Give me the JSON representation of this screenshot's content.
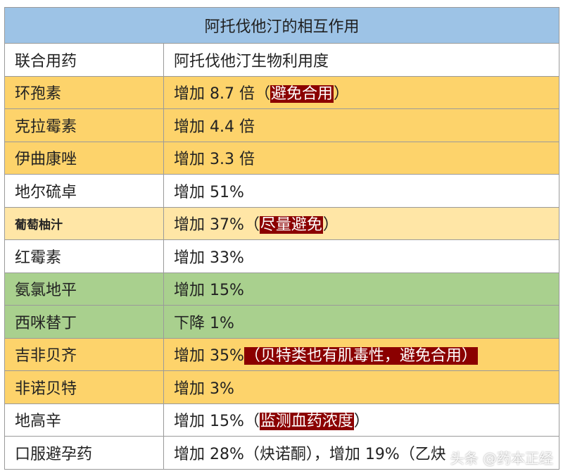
{
  "title": "阿托伐他汀的相互作用",
  "header": {
    "col1": "联合用药",
    "col2": "阿托伐他汀生物利用度"
  },
  "rows": [
    {
      "drug": "环孢素",
      "pre": "增加 8.7 倍（",
      "highlight": "避免合用",
      "post": "）",
      "style": "orange"
    },
    {
      "drug": "克拉霉素",
      "pre": "增加 4.4 倍",
      "highlight": "",
      "post": "",
      "style": "orange"
    },
    {
      "drug": "伊曲康唑",
      "pre": "增加 3.3 倍",
      "highlight": "",
      "post": "",
      "style": "orange"
    },
    {
      "drug": "地尔硫卓",
      "pre": "增加 51%",
      "highlight": "",
      "post": "",
      "style": "white"
    },
    {
      "drug": "葡萄柚汁",
      "pre": "增加 37%（",
      "highlight": "尽量避免",
      "post": "）",
      "style": "lightorange"
    },
    {
      "drug": "红霉素",
      "pre": "增加 33%",
      "highlight": "",
      "post": "",
      "style": "white"
    },
    {
      "drug": "氨氯地平",
      "pre": "增加 15%",
      "highlight": "",
      "post": "",
      "style": "green"
    },
    {
      "drug": "西咪替丁",
      "pre": "下降 1%",
      "highlight": "",
      "post": "",
      "style": "green"
    },
    {
      "drug": "吉非贝齐",
      "pre": "增加 35%",
      "highlight": "（贝特类也有肌毒性，避免合用）",
      "post": "",
      "style": "orange"
    },
    {
      "drug": "非诺贝特",
      "pre": "增加 3%",
      "highlight": "",
      "post": "",
      "style": "orange"
    },
    {
      "drug": "地高辛",
      "pre": "增加 15%（",
      "highlight": "监测血药浓度",
      "post": "）",
      "style": "white"
    },
    {
      "drug": "口服避孕药",
      "pre": "增加 28%（炔诺酮），增加 19%（乙炔",
      "highlight": "",
      "post": "",
      "style": "white"
    }
  ],
  "watermark": "头条 @药本正经"
}
